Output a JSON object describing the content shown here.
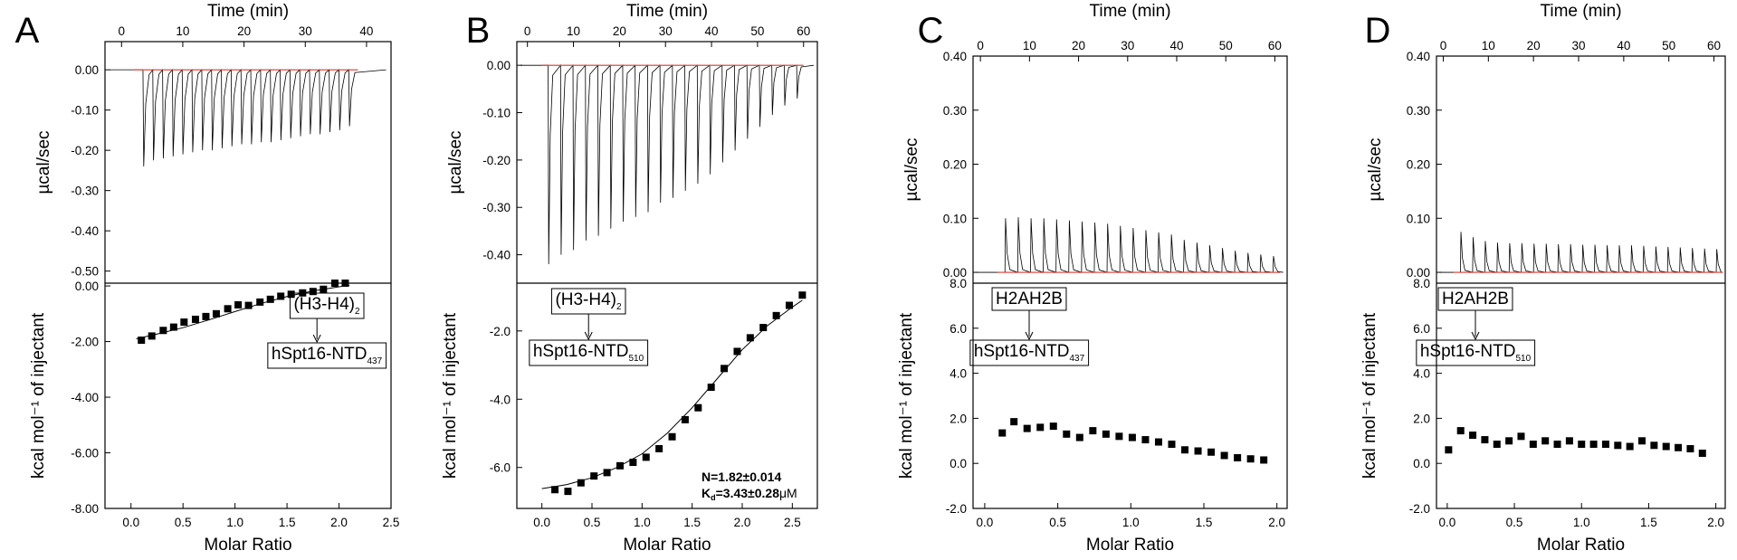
{
  "chart_data": [
    {
      "panel": "A",
      "type": "scatter",
      "top_axis_label": "Time (min)",
      "top_x_ticks": [
        "0",
        "10",
        "20",
        "30",
        "40"
      ],
      "top_xlim": [
        -2.7,
        44
      ],
      "upper_ylabel": "µcal/sec",
      "upper_y_ticks": [
        "0.00",
        "-0.10",
        "-0.20",
        "-0.30",
        "-0.40",
        "-0.50"
      ],
      "upper_ylim": [
        -0.53,
        0.07
      ],
      "lower_ylabel": "kcal mol⁻¹ of injectant",
      "lower_y_ticks": [
        "0.00",
        "-2.00",
        "-4.00",
        "-6.00",
        "-8.00"
      ],
      "lower_ylim": [
        -8.0,
        0.1
      ],
      "xlabel": "Molar Ratio",
      "x_ticks": [
        "0.0",
        "0.5",
        "1.0",
        "1.5",
        "2.0",
        "2.5"
      ],
      "xlim": [
        -0.25,
        2.5
      ],
      "raw_trace": {
        "injection_times_min": [
          3.5,
          5.1,
          6.7,
          8.3,
          9.9,
          11.5,
          13.1,
          14.7,
          16.3,
          17.9,
          19.5,
          21.1,
          22.7,
          24.3,
          25.9,
          27.5,
          29.1,
          30.7,
          32.3,
          33.9,
          35.5,
          37.1
        ],
        "peak_heights_ucal_per_sec": [
          -0.24,
          -0.225,
          -0.22,
          -0.215,
          -0.21,
          -0.205,
          -0.2,
          -0.2,
          -0.195,
          -0.19,
          -0.185,
          -0.185,
          -0.18,
          -0.18,
          -0.175,
          -0.17,
          -0.165,
          -0.16,
          -0.16,
          -0.155,
          -0.15,
          -0.14
        ],
        "baseline_ucal_per_sec": 0.0
      },
      "integrated_x": [
        0.1,
        0.2,
        0.31,
        0.41,
        0.51,
        0.62,
        0.72,
        0.82,
        0.93,
        1.03,
        1.13,
        1.24,
        1.34,
        1.44,
        1.54,
        1.65,
        1.75,
        1.85,
        1.96,
        2.06
      ],
      "integrated_y": [
        -1.95,
        -1.8,
        -1.6,
        -1.48,
        -1.3,
        -1.2,
        -1.1,
        -1.0,
        -0.82,
        -0.68,
        -0.7,
        -0.58,
        -0.48,
        -0.37,
        -0.3,
        -0.25,
        -0.2,
        -0.12,
        0.1,
        0.1
      ],
      "fit_x": [
        0.05,
        0.25,
        0.5,
        0.75,
        1.0,
        1.25,
        1.5,
        1.75,
        2.0,
        2.1
      ],
      "fit_y": [
        -1.9,
        -1.73,
        -1.5,
        -1.22,
        -0.92,
        -0.63,
        -0.38,
        -0.18,
        -0.03,
        0.02
      ],
      "annotation_top": "(H3-H4)",
      "annotation_top_sub": "2",
      "annotation_bottom": "hSpt16-NTD",
      "annotation_bottom_sub": "437"
    },
    {
      "panel": "B",
      "type": "scatter",
      "top_axis_label": "Time (min)",
      "top_x_ticks": [
        "0",
        "10",
        "20",
        "30",
        "40",
        "50",
        "60"
      ],
      "top_xlim": [
        -2.3,
        63
      ],
      "upper_ylabel": "µcal/sec",
      "upper_y_ticks": [
        "0.00",
        "-0.10",
        "-0.20",
        "-0.30",
        "-0.40"
      ],
      "upper_ylim": [
        -0.46,
        0.05
      ],
      "lower_ylabel": "kcal mol⁻¹ of injectant",
      "lower_y_ticks": [
        "-2.0",
        "-4.0",
        "-6.0"
      ],
      "lower_ylim": [
        -7.2,
        -0.6
      ],
      "xlabel": "Molar Ratio",
      "x_ticks": [
        "0.0",
        "0.5",
        "1.0",
        "1.5",
        "2.0",
        "2.5"
      ],
      "xlim": [
        -0.25,
        2.75
      ],
      "raw_trace": {
        "injection_times_min": [
          4.5,
          7.2,
          9.9,
          12.6,
          15.3,
          18.0,
          20.7,
          23.4,
          26.1,
          28.8,
          31.5,
          34.2,
          36.9,
          39.6,
          42.3,
          45.0,
          47.7,
          50.4,
          53.1,
          55.8,
          58.5
        ],
        "peak_heights_ucal_per_sec": [
          -0.42,
          -0.4,
          -0.39,
          -0.37,
          -0.36,
          -0.345,
          -0.33,
          -0.32,
          -0.31,
          -0.29,
          -0.28,
          -0.265,
          -0.25,
          -0.23,
          -0.205,
          -0.18,
          -0.155,
          -0.13,
          -0.105,
          -0.085,
          -0.07
        ],
        "baseline_ucal_per_sec": 0.0
      },
      "integrated_x": [
        0.13,
        0.26,
        0.39,
        0.52,
        0.65,
        0.78,
        0.91,
        1.04,
        1.17,
        1.3,
        1.43,
        1.56,
        1.69,
        1.82,
        1.95,
        2.08,
        2.21,
        2.34,
        2.47,
        2.6
      ],
      "integrated_y": [
        -6.65,
        -6.7,
        -6.45,
        -6.25,
        -6.15,
        -5.95,
        -5.85,
        -5.7,
        -5.45,
        -5.1,
        -4.6,
        -4.25,
        -3.65,
        -3.1,
        -2.6,
        -2.2,
        -1.9,
        -1.55,
        -1.25,
        -0.95
      ],
      "fit_x": [
        0.0,
        0.25,
        0.5,
        0.75,
        1.0,
        1.25,
        1.5,
        1.75,
        2.0,
        2.25,
        2.5,
        2.6
      ],
      "fit_y": [
        -6.62,
        -6.5,
        -6.3,
        -6.0,
        -5.6,
        -5.0,
        -4.25,
        -3.4,
        -2.55,
        -1.85,
        -1.3,
        -1.1
      ],
      "annotation_top": "(H3-H4)",
      "annotation_top_sub": "2",
      "annotation_bottom": "hSpt16-NTD",
      "annotation_bottom_sub": "510",
      "fit_result_n": "N=1.82±0.014",
      "fit_result_kd_prefix": "K",
      "fit_result_kd_sub": "d",
      "fit_result_kd_value": "=3.43±0.28",
      "fit_result_kd_unit": "μM"
    },
    {
      "panel": "C",
      "type": "scatter",
      "top_axis_label": "Time (min)",
      "top_x_ticks": [
        "0",
        "10",
        "20",
        "30",
        "40",
        "50",
        "60"
      ],
      "top_xlim": [
        -1.5,
        62.5
      ],
      "upper_ylabel": "µcal/sec",
      "upper_y_ticks": [
        "0.40",
        "0.30",
        "0.20",
        "0.10",
        "0.00"
      ],
      "upper_ylim": [
        -0.02,
        0.4
      ],
      "lower_ylabel": "kcal mol⁻¹ of injectant",
      "lower_y_ticks": [
        "8.0",
        "6.0",
        "4.0",
        "2.0",
        "0.0",
        "-2.0"
      ],
      "lower_ylim": [
        -2.0,
        8.0
      ],
      "xlabel": "Molar Ratio",
      "x_ticks": [
        "0.0",
        "0.5",
        "1.0",
        "1.5",
        "2.0"
      ],
      "xlim": [
        -0.08,
        2.07
      ],
      "raw_trace": {
        "injection_times_min": [
          5.0,
          7.6,
          10.2,
          12.8,
          15.4,
          18.0,
          20.6,
          23.2,
          25.8,
          28.4,
          31.0,
          33.6,
          36.2,
          38.8,
          41.4,
          44.0,
          46.6,
          49.2,
          51.8,
          54.4,
          57.0,
          59.6
        ],
        "peak_heights_ucal_per_sec": [
          0.1,
          0.102,
          0.1,
          0.1,
          0.098,
          0.096,
          0.094,
          0.092,
          0.09,
          0.086,
          0.082,
          0.078,
          0.074,
          0.07,
          0.06,
          0.055,
          0.05,
          0.045,
          0.04,
          0.036,
          0.033,
          0.03
        ],
        "baseline_ucal_per_sec": 0.0
      },
      "integrated_x": [
        0.12,
        0.2,
        0.29,
        0.38,
        0.47,
        0.56,
        0.65,
        0.74,
        0.83,
        0.92,
        1.01,
        1.1,
        1.19,
        1.28,
        1.37,
        1.46,
        1.55,
        1.64,
        1.73,
        1.82,
        1.91
      ],
      "integrated_y": [
        1.35,
        1.85,
        1.55,
        1.6,
        1.65,
        1.3,
        1.15,
        1.45,
        1.3,
        1.2,
        1.15,
        1.05,
        0.95,
        0.85,
        0.6,
        0.55,
        0.5,
        0.35,
        0.25,
        0.2,
        0.15
      ],
      "annotation_top": "H2AH2B",
      "annotation_bottom": "hSpt16-NTD",
      "annotation_bottom_sub": "437"
    },
    {
      "panel": "D",
      "type": "scatter",
      "top_axis_label": "Time (min)",
      "top_x_ticks": [
        "0",
        "10",
        "20",
        "30",
        "40",
        "50",
        "60"
      ],
      "top_xlim": [
        -1.5,
        62.5
      ],
      "upper_ylabel": "µcal/sec",
      "upper_y_ticks": [
        "0.40",
        "0.30",
        "0.20",
        "0.10",
        "0.00"
      ],
      "upper_ylim": [
        -0.02,
        0.4
      ],
      "lower_ylabel": "kcal mol⁻¹ of injectant",
      "lower_y_ticks": [
        "8.0",
        "6.0",
        "4.0",
        "2.0",
        "0.0",
        "-2.0"
      ],
      "lower_ylim": [
        -2.0,
        8.0
      ],
      "xlabel": "Molar Ratio",
      "x_ticks": [
        "0.0",
        "0.5",
        "1.0",
        "1.5",
        "2.0"
      ],
      "xlim": [
        -0.08,
        2.07
      ],
      "raw_trace": {
        "injection_times_min": [
          3.8,
          6.5,
          9.2,
          11.9,
          14.6,
          17.3,
          20.0,
          22.7,
          25.4,
          28.1,
          30.8,
          33.5,
          36.2,
          38.9,
          41.6,
          44.3,
          47.0,
          49.7,
          52.4,
          55.1,
          57.8,
          60.5
        ],
        "peak_heights_ucal_per_sec": [
          0.075,
          0.065,
          0.058,
          0.055,
          0.054,
          0.054,
          0.053,
          0.053,
          0.052,
          0.052,
          0.051,
          0.051,
          0.05,
          0.05,
          0.05,
          0.049,
          0.048,
          0.047,
          0.046,
          0.045,
          0.044,
          0.043
        ],
        "baseline_ucal_per_sec": 0.0
      },
      "integrated_x": [
        0.01,
        0.1,
        0.19,
        0.28,
        0.37,
        0.46,
        0.55,
        0.64,
        0.73,
        0.82,
        0.91,
        1.0,
        1.09,
        1.18,
        1.27,
        1.36,
        1.45,
        1.54,
        1.63,
        1.72,
        1.81,
        1.9
      ],
      "integrated_y": [
        0.6,
        1.45,
        1.25,
        1.05,
        0.85,
        1.0,
        1.2,
        0.85,
        1.0,
        0.85,
        1.0,
        0.85,
        0.85,
        0.85,
        0.8,
        0.75,
        1.0,
        0.8,
        0.75,
        0.7,
        0.65,
        0.45
      ],
      "annotation_top": "H2AH2B",
      "annotation_bottom": "hSpt16-NTD",
      "annotation_bottom_sub": "510"
    }
  ]
}
